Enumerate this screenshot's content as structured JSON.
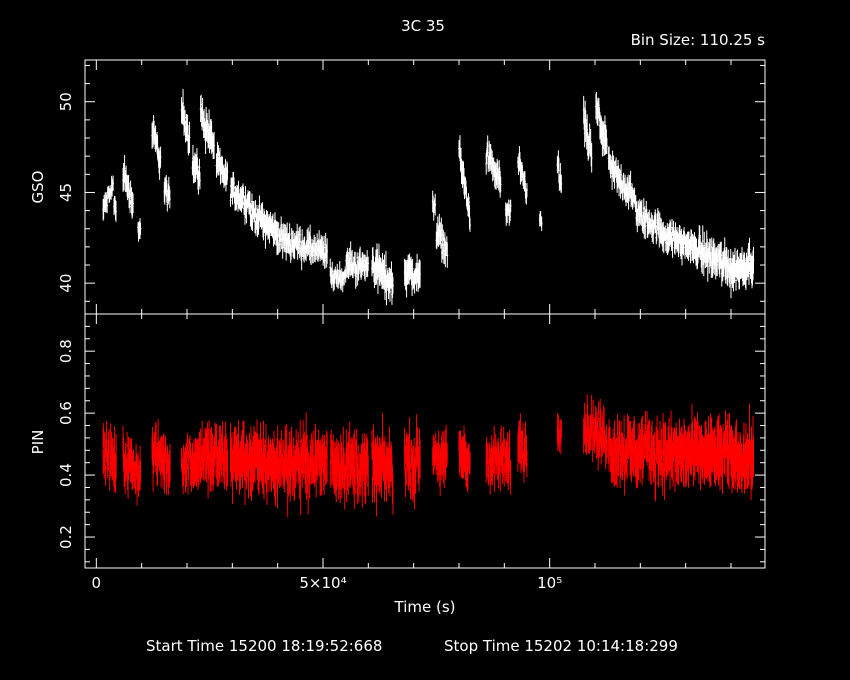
{
  "header": {
    "title": "3C 35",
    "bin_size": "Bin Size: 110.25 s"
  },
  "footer": {
    "start_time": "Start Time 15200 18:19:52:668",
    "stop_time": "Stop Time 15202 10:14:18:299"
  },
  "colors": {
    "gso": "#ffffff",
    "pin": "#ff0000",
    "axes": "#ffffff",
    "background": "#000000"
  },
  "chart_data": {
    "type": "scatter",
    "title": "3C 35",
    "xlabel": "Time (s)",
    "xlim": [
      -2500,
      147500
    ],
    "x_ticks": [
      {
        "value": 0,
        "label": "0"
      },
      {
        "value": 50000,
        "label": "5×10⁴"
      },
      {
        "value": 100000,
        "label": "10⁵"
      }
    ],
    "panels": [
      {
        "name": "GSO",
        "ylabel": "GSO",
        "ylim": [
          38.3,
          52.3
        ],
        "y_ticks": [
          40,
          45,
          50
        ],
        "color": "#ffffff",
        "segments": [
          {
            "t0": 1500,
            "t1": 3800,
            "v0": 44.0,
            "v1": 45.5,
            "noise": 0.4
          },
          {
            "t0": 3900,
            "t1": 4400,
            "v0": 44.2,
            "v1": 44.0,
            "noise": 0.4
          },
          {
            "t0": 5900,
            "t1": 8200,
            "v0": 46.1,
            "v1": 44.3,
            "noise": 0.5
          },
          {
            "t0": 9200,
            "t1": 9800,
            "v0": 43.0,
            "v1": 42.8,
            "noise": 0.4
          },
          {
            "t0": 12300,
            "t1": 14200,
            "v0": 48.5,
            "v1": 46.7,
            "noise": 0.5
          },
          {
            "t0": 15000,
            "t1": 16300,
            "v0": 45.3,
            "v1": 44.4,
            "noise": 0.5
          },
          {
            "t0": 18800,
            "t1": 20600,
            "v0": 49.6,
            "v1": 48.0,
            "noise": 0.6
          },
          {
            "t0": 21200,
            "t1": 22900,
            "v0": 46.6,
            "v1": 46.0,
            "noise": 0.5
          },
          {
            "t0": 23000,
            "t1": 26000,
            "v0": 49.3,
            "v1": 47.6,
            "noise": 0.6
          },
          {
            "t0": 26500,
            "t1": 29000,
            "v0": 46.7,
            "v1": 45.6,
            "noise": 0.5
          },
          {
            "t0": 29600,
            "t1": 34000,
            "v0": 45.2,
            "v1": 44.3,
            "noise": 0.5
          },
          {
            "t0": 34000,
            "t1": 40000,
            "v0": 43.9,
            "v1": 42.8,
            "noise": 0.5
          },
          {
            "t0": 40000,
            "t1": 51000,
            "v0": 42.5,
            "v1": 41.6,
            "noise": 0.5
          },
          {
            "t0": 51600,
            "t1": 55000,
            "v0": 40.4,
            "v1": 40.3,
            "noise": 0.4
          },
          {
            "t0": 55000,
            "t1": 60000,
            "v0": 41.0,
            "v1": 40.9,
            "noise": 0.5
          },
          {
            "t0": 60800,
            "t1": 65500,
            "v0": 41.2,
            "v1": 39.8,
            "noise": 0.6
          },
          {
            "t0": 68000,
            "t1": 71500,
            "v0": 40.7,
            "v1": 40.3,
            "noise": 0.6
          },
          {
            "t0": 74200,
            "t1": 74800,
            "v0": 44.2,
            "v1": 44.5,
            "noise": 0.4
          },
          {
            "t0": 75000,
            "t1": 77500,
            "v0": 42.9,
            "v1": 41.8,
            "noise": 0.5
          },
          {
            "t0": 80000,
            "t1": 82500,
            "v0": 47.3,
            "v1": 43.5,
            "noise": 0.5
          },
          {
            "t0": 86000,
            "t1": 89200,
            "v0": 47.1,
            "v1": 45.5,
            "noise": 0.5
          },
          {
            "t0": 90300,
            "t1": 91500,
            "v0": 44.0,
            "v1": 43.8,
            "noise": 0.4
          },
          {
            "t0": 93000,
            "t1": 95000,
            "v0": 46.5,
            "v1": 45.0,
            "noise": 0.5
          },
          {
            "t0": 97800,
            "t1": 98300,
            "v0": 43.5,
            "v1": 43.2,
            "noise": 0.3
          },
          {
            "t0": 101700,
            "t1": 102600,
            "v0": 46.6,
            "v1": 45.3,
            "noise": 0.5
          },
          {
            "t0": 107500,
            "t1": 109300,
            "v0": 49.0,
            "v1": 47.0,
            "noise": 0.6
          },
          {
            "t0": 110200,
            "t1": 112700,
            "v0": 49.6,
            "v1": 47.6,
            "noise": 0.6
          },
          {
            "t0": 113000,
            "t1": 119000,
            "v0": 46.5,
            "v1": 44.5,
            "noise": 0.5
          },
          {
            "t0": 119000,
            "t1": 126000,
            "v0": 43.9,
            "v1": 42.6,
            "noise": 0.5
          },
          {
            "t0": 126000,
            "t1": 133000,
            "v0": 42.6,
            "v1": 41.8,
            "noise": 0.5
          },
          {
            "t0": 133000,
            "t1": 140000,
            "v0": 41.8,
            "v1": 40.9,
            "noise": 0.6
          },
          {
            "t0": 140000,
            "t1": 145000,
            "v0": 40.6,
            "v1": 41.3,
            "noise": 0.6
          }
        ]
      },
      {
        "name": "PIN",
        "ylabel": "PIN",
        "ylim": [
          0.1,
          0.92
        ],
        "y_ticks": [
          0.2,
          0.4,
          0.6,
          0.8
        ],
        "color": "#ff0000",
        "segments": [
          {
            "t0": 1500,
            "t1": 4400,
            "v0": 0.46,
            "v1": 0.44,
            "noise": 0.05
          },
          {
            "t0": 5900,
            "t1": 9800,
            "v0": 0.45,
            "v1": 0.4,
            "noise": 0.05
          },
          {
            "t0": 12300,
            "t1": 16300,
            "v0": 0.47,
            "v1": 0.43,
            "noise": 0.05
          },
          {
            "t0": 18800,
            "t1": 22900,
            "v0": 0.44,
            "v1": 0.45,
            "noise": 0.05
          },
          {
            "t0": 23000,
            "t1": 29000,
            "v0": 0.46,
            "v1": 0.45,
            "noise": 0.06
          },
          {
            "t0": 29600,
            "t1": 40000,
            "v0": 0.46,
            "v1": 0.43,
            "noise": 0.06
          },
          {
            "t0": 40000,
            "t1": 51000,
            "v0": 0.44,
            "v1": 0.44,
            "noise": 0.06
          },
          {
            "t0": 51600,
            "t1": 60000,
            "v0": 0.45,
            "v1": 0.42,
            "noise": 0.06
          },
          {
            "t0": 60800,
            "t1": 65500,
            "v0": 0.43,
            "v1": 0.42,
            "noise": 0.06
          },
          {
            "t0": 68000,
            "t1": 71500,
            "v0": 0.44,
            "v1": 0.44,
            "noise": 0.06
          },
          {
            "t0": 74200,
            "t1": 77500,
            "v0": 0.47,
            "v1": 0.44,
            "noise": 0.05
          },
          {
            "t0": 80000,
            "t1": 82500,
            "v0": 0.47,
            "v1": 0.44,
            "noise": 0.05
          },
          {
            "t0": 86000,
            "t1": 91500,
            "v0": 0.45,
            "v1": 0.44,
            "noise": 0.05
          },
          {
            "t0": 93000,
            "t1": 95000,
            "v0": 0.5,
            "v1": 0.48,
            "noise": 0.05
          },
          {
            "t0": 101700,
            "t1": 102600,
            "v0": 0.55,
            "v1": 0.56,
            "noise": 0.04
          },
          {
            "t0": 107500,
            "t1": 112700,
            "v0": 0.55,
            "v1": 0.52,
            "noise": 0.05
          },
          {
            "t0": 113000,
            "t1": 126000,
            "v0": 0.48,
            "v1": 0.47,
            "noise": 0.06
          },
          {
            "t0": 126000,
            "t1": 145000,
            "v0": 0.47,
            "v1": 0.46,
            "noise": 0.06
          }
        ]
      }
    ]
  }
}
